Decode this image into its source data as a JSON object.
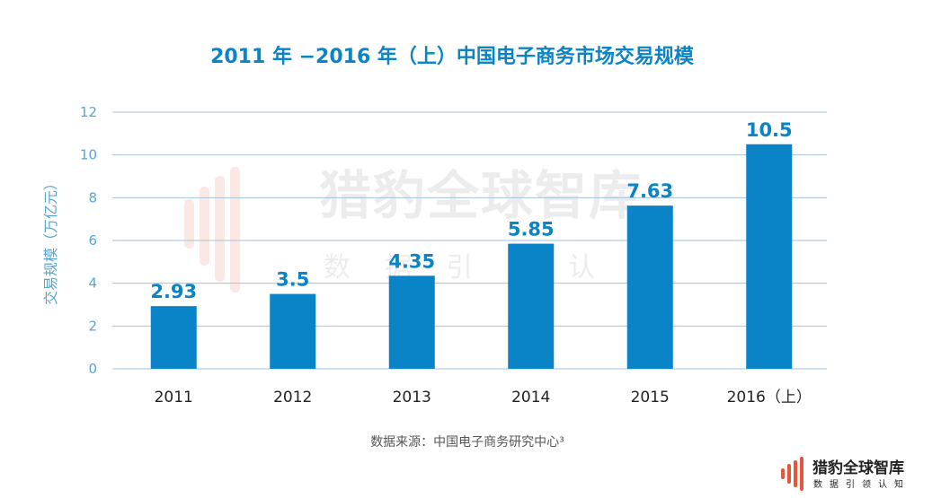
{
  "chart_data": {
    "type": "bar",
    "title": "2011 年 −2016 年（上）中国电子商务市场交易规模",
    "ylabel": "交易规模（万亿元）",
    "xlabel": "",
    "categories": [
      "2011",
      "2012",
      "2013",
      "2014",
      "2015",
      "2016（上）"
    ],
    "values": [
      2.93,
      3.5,
      4.35,
      5.85,
      7.63,
      10.5
    ],
    "value_labels": [
      "2.93",
      "3.5",
      "4.35",
      "5.85",
      "7.63",
      "10.5"
    ],
    "ylim": [
      0,
      12
    ],
    "yticks": [
      0,
      2,
      4,
      6,
      8,
      10,
      12
    ],
    "grid": true,
    "colors": {
      "bar": "#0a84c6",
      "title": "#0a84c6",
      "axis_text": "#5aa5cf",
      "grid": "#9fc3de"
    }
  },
  "source": "数据来源：中国电子商务研究中心³",
  "watermark": {
    "main": "猎豹全球智库",
    "sub": "数据引领认知"
  },
  "logo": {
    "name": "猎豹全球智库",
    "tagline": "数据引领认知",
    "icon": "bar-stripes-logo-icon"
  }
}
